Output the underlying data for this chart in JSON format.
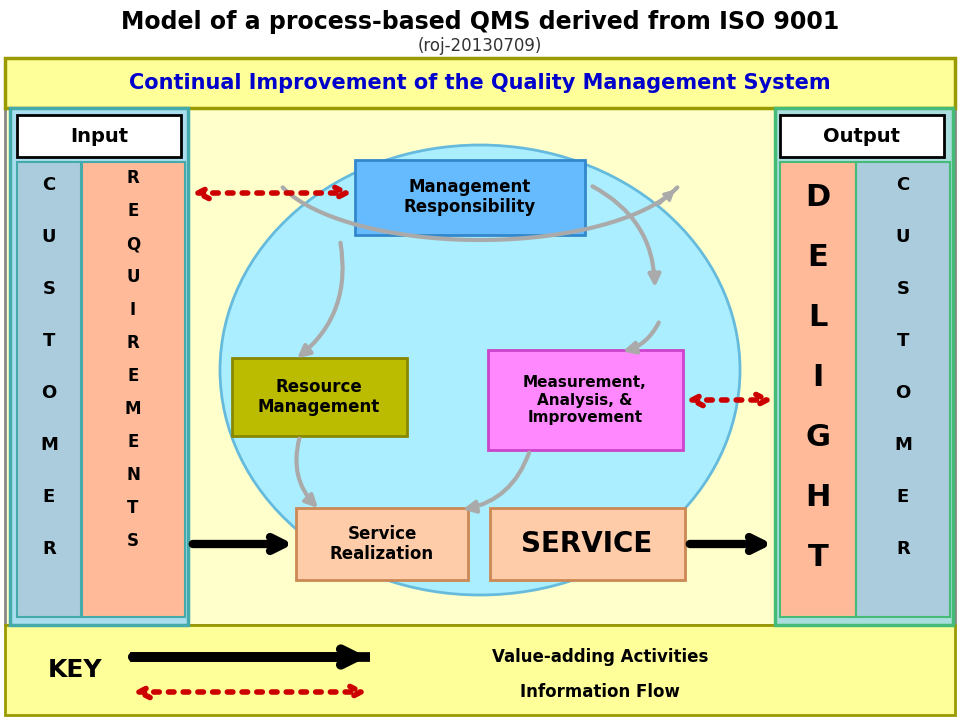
{
  "title_line1": "Model of a process-based QMS derived from ISO 9001",
  "title_line2": "(roj-20130709)",
  "bg_color": "#ffffff",
  "continual_text": "Continual Improvement of the Quality Management System",
  "continual_bg": "#ffff99",
  "continual_border": "#999900",
  "main_bg": "#ffffcc",
  "circle_color": "#aaeeff",
  "circle_border": "#66bbdd",
  "input_panel_bg": "#aaddee",
  "input_panel_border": "#44aaaa",
  "input_label": "Input",
  "output_panel_bg": "#aadddd",
  "output_panel_border": "#44bb77",
  "output_label": "Output",
  "cust_col_bg": "#aaccdd",
  "req_col_bg": "#ffbb99",
  "delight_col_bg": "#ffbb99",
  "cust2_col_bg": "#aaccdd",
  "mgmt_resp_text": "Management\nResponsibility",
  "mgmt_resp_bg": "#66bbff",
  "mgmt_resp_border": "#3388cc",
  "resource_mgmt_text": "Resource\nManagement",
  "resource_mgmt_bg": "#bbbb00",
  "resource_mgmt_border": "#888800",
  "measurement_text": "Measurement,\nAnalysis, &\nImprovement",
  "measurement_bg": "#ff88ff",
  "measurement_border": "#cc44cc",
  "service_real_text": "Service\nRealization",
  "service_real_bg": "#ffccaa",
  "service_real_border": "#cc8855",
  "service_text": "SERVICE",
  "service_bg": "#ffccaa",
  "service_border": "#cc8855",
  "key_text": "KEY",
  "value_adding_text": "Value-adding Activities",
  "info_flow_text": "Information Flow",
  "arrow_color": "#000000",
  "dashed_arrow_color": "#cc0000",
  "key_bg": "#ffff99",
  "gray_arrow_color": "#aaaaaa"
}
